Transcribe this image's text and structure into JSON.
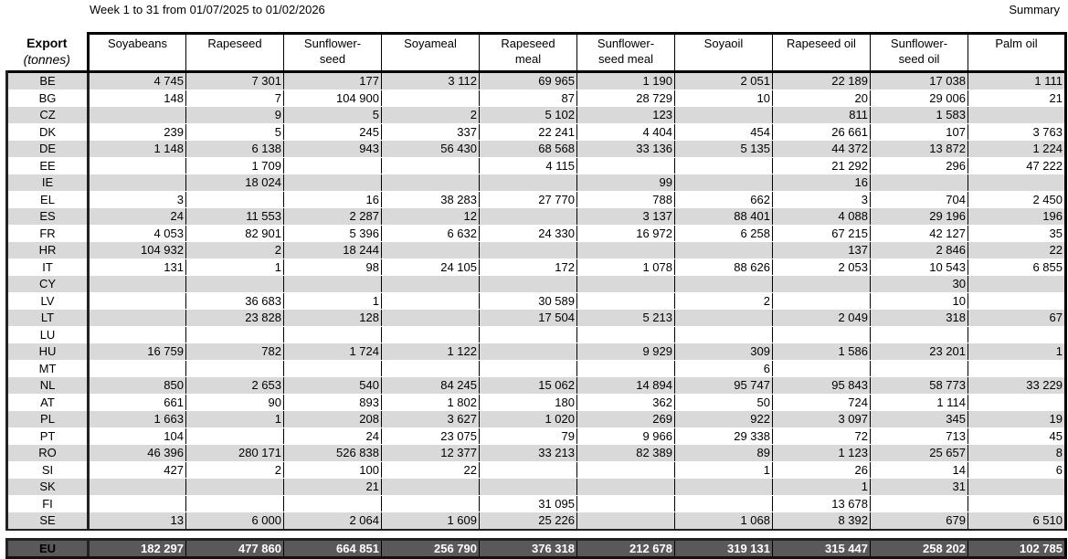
{
  "header": {
    "title": "Week 1 to 31 from 01/07/2025 to 01/02/2026",
    "summary": "Summary"
  },
  "table": {
    "corner_title": "Export",
    "corner_unit": "(tonnes)",
    "columns": [
      [
        "Soyabeans"
      ],
      [
        "Rapeseed"
      ],
      [
        "Sunflower-",
        "seed"
      ],
      [
        "Soyameal"
      ],
      [
        "Rapeseed",
        "meal"
      ],
      [
        "Sunflower-",
        "seed meal"
      ],
      [
        "Soyaoil"
      ],
      [
        "Rapeseed oil"
      ],
      [
        "Sunflower-",
        "seed oil"
      ],
      [
        "Palm oil"
      ]
    ],
    "rows": [
      {
        "country": "BE",
        "values": [
          "4 745",
          "7 301",
          "177",
          "3 112",
          "69 965",
          "1 190",
          "2 051",
          "22 189",
          "17 038",
          "1 111"
        ]
      },
      {
        "country": "BG",
        "values": [
          "148",
          "7",
          "104 900",
          "",
          "87",
          "28 729",
          "10",
          "20",
          "29 006",
          "21"
        ]
      },
      {
        "country": "CZ",
        "values": [
          "",
          "9",
          "5",
          "2",
          "5 102",
          "123",
          "",
          "811",
          "1 583",
          ""
        ]
      },
      {
        "country": "DK",
        "values": [
          "239",
          "5",
          "245",
          "337",
          "22 241",
          "4 404",
          "454",
          "26 661",
          "107",
          "3 763"
        ]
      },
      {
        "country": "DE",
        "values": [
          "1 148",
          "6 138",
          "943",
          "56 430",
          "68 568",
          "33 136",
          "5 135",
          "44 372",
          "13 872",
          "1 224"
        ]
      },
      {
        "country": "EE",
        "values": [
          "",
          "1 709",
          "",
          "",
          "4 115",
          "",
          "",
          "21 292",
          "296",
          "47 222"
        ]
      },
      {
        "country": "IE",
        "values": [
          "",
          "18 024",
          "",
          "",
          "",
          "99",
          "",
          "16",
          "",
          ""
        ]
      },
      {
        "country": "EL",
        "values": [
          "3",
          "",
          "16",
          "38 283",
          "27 770",
          "788",
          "662",
          "3",
          "704",
          "2 450"
        ]
      },
      {
        "country": "ES",
        "values": [
          "24",
          "11 553",
          "2 287",
          "12",
          "",
          "3 137",
          "88 401",
          "4 088",
          "29 196",
          "196"
        ]
      },
      {
        "country": "FR",
        "values": [
          "4 053",
          "82 901",
          "5 396",
          "6 632",
          "24 330",
          "16 972",
          "6 258",
          "67 215",
          "42 127",
          "35"
        ]
      },
      {
        "country": "HR",
        "values": [
          "104 932",
          "2",
          "18 244",
          "",
          "",
          "",
          "",
          "137",
          "2 846",
          "22"
        ]
      },
      {
        "country": "IT",
        "values": [
          "131",
          "1",
          "98",
          "24 105",
          "172",
          "1 078",
          "88 626",
          "2 053",
          "10 543",
          "6 855"
        ]
      },
      {
        "country": "CY",
        "values": [
          "",
          "",
          "",
          "",
          "",
          "",
          "",
          "",
          "30",
          ""
        ]
      },
      {
        "country": "LV",
        "values": [
          "",
          "36 683",
          "1",
          "",
          "30 589",
          "",
          "2",
          "",
          "10",
          ""
        ]
      },
      {
        "country": "LT",
        "values": [
          "",
          "23 828",
          "128",
          "",
          "17 504",
          "5 213",
          "",
          "2 049",
          "318",
          "67"
        ]
      },
      {
        "country": "LU",
        "values": [
          "",
          "",
          "",
          "",
          "",
          "",
          "",
          "",
          "",
          ""
        ]
      },
      {
        "country": "HU",
        "values": [
          "16 759",
          "782",
          "1 724",
          "1 122",
          "",
          "9 929",
          "309",
          "1 586",
          "23 201",
          "1"
        ]
      },
      {
        "country": "MT",
        "values": [
          "",
          "",
          "",
          "",
          "",
          "",
          "6",
          "",
          "",
          ""
        ]
      },
      {
        "country": "NL",
        "values": [
          "850",
          "2 653",
          "540",
          "84 245",
          "15 062",
          "14 894",
          "95 747",
          "95 843",
          "58 773",
          "33 229"
        ]
      },
      {
        "country": "AT",
        "values": [
          "661",
          "90",
          "893",
          "1 802",
          "180",
          "362",
          "50",
          "724",
          "1 114",
          ""
        ]
      },
      {
        "country": "PL",
        "values": [
          "1 663",
          "1",
          "208",
          "3 627",
          "1 020",
          "269",
          "922",
          "3 097",
          "345",
          "19"
        ]
      },
      {
        "country": "PT",
        "values": [
          "104",
          "",
          "24",
          "23 075",
          "79",
          "9 966",
          "29 338",
          "72",
          "713",
          "45"
        ]
      },
      {
        "country": "RO",
        "values": [
          "46 396",
          "280 171",
          "526 838",
          "12 377",
          "33 213",
          "82 389",
          "89",
          "1 123",
          "25 657",
          "8"
        ]
      },
      {
        "country": "SI",
        "values": [
          "427",
          "2",
          "100",
          "22",
          "",
          "",
          "1",
          "26",
          "14",
          "6"
        ]
      },
      {
        "country": "SK",
        "values": [
          "",
          "",
          "21",
          "",
          "",
          "",
          "",
          "1",
          "31",
          ""
        ]
      },
      {
        "country": "FI",
        "values": [
          "",
          "",
          "",
          "",
          "31 095",
          "",
          "",
          "13 678",
          "",
          ""
        ]
      },
      {
        "country": "SE",
        "values": [
          "13",
          "6 000",
          "2 064",
          "1 609",
          "25 226",
          "",
          "1 068",
          "8 392",
          "679",
          "6 510"
        ]
      }
    ],
    "total": {
      "country": "EU",
      "values": [
        "182 297",
        "477 860",
        "664 851",
        "256 790",
        "376 318",
        "212 678",
        "319 131",
        "315 447",
        "258 202",
        "102 785"
      ]
    }
  }
}
